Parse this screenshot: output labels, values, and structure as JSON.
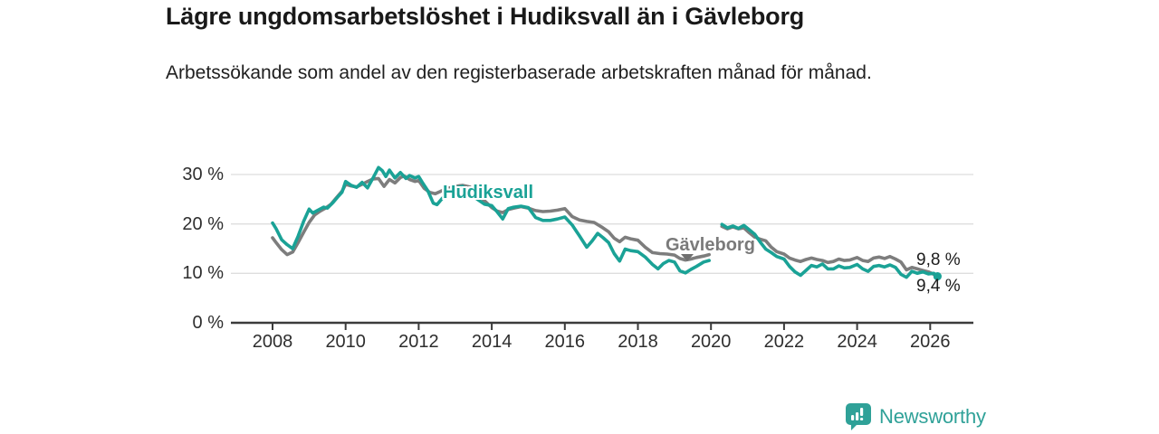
{
  "title": "Lägre ungdomsarbetslöshet i Hudiksvall än i Gävleborg",
  "subtitle": "Arbetssökande som andel av den registerbaserade arbetskraften månad för månad.",
  "colors": {
    "accent_teal": "#1aa296",
    "line_gray": "#7d7d7d",
    "gridline": "#dedede",
    "axis": "#3b3b3b",
    "text_dark": "#1c1c1c",
    "logo_teal": "#2fa198"
  },
  "chart": {
    "y_axis": {
      "ticks": [
        {
          "value": 30,
          "label": "30 %"
        },
        {
          "value": 20,
          "label": "20 %"
        },
        {
          "value": 10,
          "label": "10 %"
        },
        {
          "value": 0,
          "label": "0 %"
        }
      ]
    },
    "x_axis": {
      "ticks": [
        {
          "year": 2008,
          "label": "2008"
        },
        {
          "year": 2010,
          "label": "2010"
        },
        {
          "year": 2012,
          "label": "2012"
        },
        {
          "year": 2014,
          "label": "2014"
        },
        {
          "year": 2016,
          "label": "2016"
        },
        {
          "year": 2018,
          "label": "2018"
        },
        {
          "year": 2020,
          "label": "2020"
        },
        {
          "year": 2022,
          "label": "2022"
        },
        {
          "year": 2024,
          "label": "2024"
        },
        {
          "year": 2026,
          "label": "2026"
        }
      ]
    },
    "series_labels": {
      "hudiksvall": "Hudiksvall",
      "gavleborg": "Gävleborg"
    },
    "end_labels": {
      "gavleborg": "9,8 %",
      "hudiksvall": "9,4 %"
    }
  },
  "chart_data": {
    "type": "line",
    "title": "Lägre ungdomsarbetslöshet i Hudiksvall än i Gävleborg",
    "unit": "%",
    "x_range": [
      2007.6,
      2026.6
    ],
    "ylim": [
      0,
      33
    ],
    "grid": true,
    "legend_position": "inline-labels",
    "series": [
      {
        "name": "Gävleborg",
        "color": "#7d7d7d",
        "end_value": 9.8,
        "end_label": "9,8 %",
        "segments": [
          [
            [
              2008.0,
              17.2
            ],
            [
              2008.1,
              16.2
            ],
            [
              2008.25,
              14.8
            ],
            [
              2008.4,
              13.8
            ],
            [
              2008.55,
              14.3
            ],
            [
              2008.7,
              16.2
            ],
            [
              2008.85,
              18.3
            ],
            [
              2009.0,
              20.3
            ],
            [
              2009.15,
              21.8
            ],
            [
              2009.3,
              22.6
            ],
            [
              2009.45,
              23.2
            ],
            [
              2009.6,
              24.0
            ],
            [
              2009.75,
              25.3
            ],
            [
              2009.9,
              26.6
            ],
            [
              2010.0,
              28.0
            ],
            [
              2010.15,
              27.7
            ],
            [
              2010.3,
              27.5
            ],
            [
              2010.45,
              28.0
            ],
            [
              2010.6,
              28.6
            ],
            [
              2010.75,
              29.1
            ],
            [
              2010.9,
              29.2
            ],
            [
              2011.05,
              27.6
            ],
            [
              2011.2,
              29.0
            ],
            [
              2011.35,
              28.3
            ],
            [
              2011.5,
              29.4
            ],
            [
              2011.6,
              29.7
            ],
            [
              2011.75,
              29.0
            ],
            [
              2011.9,
              28.6
            ],
            [
              2012.0,
              28.8
            ],
            [
              2012.15,
              27.2
            ],
            [
              2012.3,
              26.4
            ],
            [
              2012.45,
              26.1
            ],
            [
              2012.6,
              26.6
            ],
            [
              2012.8,
              27.2
            ],
            [
              2013.0,
              27.6
            ],
            [
              2013.2,
              27.8
            ],
            [
              2013.4,
              27.5
            ],
            [
              2013.6,
              26.2
            ],
            [
              2013.8,
              24.7
            ],
            [
              2014.0,
              23.3
            ],
            [
              2014.15,
              22.6
            ],
            [
              2014.3,
              22.3
            ],
            [
              2014.45,
              22.9
            ],
            [
              2014.6,
              23.2
            ],
            [
              2014.8,
              23.5
            ],
            [
              2015.0,
              23.2
            ],
            [
              2015.2,
              22.7
            ],
            [
              2015.4,
              22.5
            ],
            [
              2015.6,
              22.6
            ],
            [
              2015.8,
              22.8
            ],
            [
              2016.0,
              23.1
            ],
            [
              2016.2,
              21.5
            ],
            [
              2016.4,
              20.8
            ],
            [
              2016.6,
              20.5
            ],
            [
              2016.8,
              20.3
            ],
            [
              2017.0,
              19.4
            ],
            [
              2017.2,
              18.4
            ],
            [
              2017.35,
              17.1
            ],
            [
              2017.5,
              16.4
            ],
            [
              2017.65,
              17.3
            ],
            [
              2017.8,
              17.0
            ],
            [
              2018.0,
              16.7
            ],
            [
              2018.2,
              15.3
            ],
            [
              2018.4,
              14.2
            ],
            [
              2018.6,
              14.0
            ],
            [
              2018.8,
              13.9
            ],
            [
              2019.0,
              13.7
            ],
            [
              2019.15,
              13.0
            ],
            [
              2019.3,
              12.7
            ],
            [
              2019.45,
              12.9
            ],
            [
              2019.6,
              13.2
            ],
            [
              2019.8,
              13.5
            ],
            [
              2019.95,
              13.8
            ]
          ],
          [
            [
              2020.3,
              19.5
            ],
            [
              2020.45,
              19.0
            ],
            [
              2020.6,
              19.4
            ],
            [
              2020.75,
              19.0
            ],
            [
              2020.9,
              19.2
            ],
            [
              2021.05,
              18.2
            ],
            [
              2021.2,
              17.3
            ],
            [
              2021.35,
              16.9
            ],
            [
              2021.5,
              16.6
            ],
            [
              2021.65,
              15.3
            ],
            [
              2021.8,
              14.4
            ],
            [
              2022.0,
              13.9
            ],
            [
              2022.15,
              13.1
            ],
            [
              2022.3,
              12.7
            ],
            [
              2022.45,
              12.4
            ],
            [
              2022.6,
              12.8
            ],
            [
              2022.75,
              13.1
            ],
            [
              2022.9,
              12.8
            ],
            [
              2023.05,
              12.6
            ],
            [
              2023.2,
              12.2
            ],
            [
              2023.35,
              12.4
            ],
            [
              2023.5,
              12.9
            ],
            [
              2023.65,
              12.6
            ],
            [
              2023.8,
              12.7
            ],
            [
              2024.0,
              13.2
            ],
            [
              2024.15,
              12.6
            ],
            [
              2024.3,
              12.4
            ],
            [
              2024.45,
              13.1
            ],
            [
              2024.6,
              13.3
            ],
            [
              2024.75,
              13.0
            ],
            [
              2024.9,
              13.4
            ],
            [
              2025.05,
              12.9
            ],
            [
              2025.2,
              12.3
            ],
            [
              2025.35,
              10.7
            ],
            [
              2025.5,
              11.2
            ],
            [
              2025.65,
              10.9
            ],
            [
              2025.8,
              10.6
            ],
            [
              2025.95,
              10.3
            ],
            [
              2026.1,
              9.8
            ]
          ]
        ]
      },
      {
        "name": "Hudiksvall",
        "color": "#1aa296",
        "end_value": 9.4,
        "end_label": "9,4 %",
        "segments": [
          [
            [
              2008.0,
              20.2
            ],
            [
              2008.1,
              19.0
            ],
            [
              2008.25,
              16.8
            ],
            [
              2008.4,
              15.8
            ],
            [
              2008.55,
              15.0
            ],
            [
              2008.7,
              17.5
            ],
            [
              2008.85,
              20.5
            ],
            [
              2009.0,
              23.0
            ],
            [
              2009.1,
              22.2
            ],
            [
              2009.25,
              22.8
            ],
            [
              2009.4,
              23.4
            ],
            [
              2009.5,
              23.2
            ],
            [
              2009.65,
              24.3
            ],
            [
              2009.8,
              25.6
            ],
            [
              2009.9,
              26.4
            ],
            [
              2010.0,
              28.6
            ],
            [
              2010.15,
              27.8
            ],
            [
              2010.3,
              27.4
            ],
            [
              2010.45,
              28.4
            ],
            [
              2010.6,
              27.3
            ],
            [
              2010.75,
              29.3
            ],
            [
              2010.9,
              31.4
            ],
            [
              2011.0,
              30.8
            ],
            [
              2011.1,
              29.6
            ],
            [
              2011.2,
              30.9
            ],
            [
              2011.35,
              29.3
            ],
            [
              2011.5,
              30.4
            ],
            [
              2011.65,
              29.2
            ],
            [
              2011.75,
              29.8
            ],
            [
              2011.9,
              29.3
            ],
            [
              2012.0,
              29.6
            ],
            [
              2012.1,
              28.4
            ],
            [
              2012.25,
              26.7
            ],
            [
              2012.4,
              24.2
            ],
            [
              2012.5,
              23.9
            ],
            [
              2012.65,
              25.2
            ],
            [
              2012.8,
              26.4
            ],
            [
              2013.0,
              27.3
            ],
            [
              2013.2,
              27.6
            ],
            [
              2013.4,
              26.3
            ],
            [
              2013.6,
              25.0
            ],
            [
              2013.8,
              24.0
            ],
            [
              2014.0,
              23.7
            ],
            [
              2014.15,
              22.4
            ],
            [
              2014.3,
              21.0
            ],
            [
              2014.45,
              23.1
            ],
            [
              2014.6,
              23.4
            ],
            [
              2014.8,
              23.6
            ],
            [
              2015.0,
              23.3
            ],
            [
              2015.2,
              21.3
            ],
            [
              2015.4,
              20.7
            ],
            [
              2015.6,
              20.7
            ],
            [
              2015.8,
              21.0
            ],
            [
              2016.0,
              21.4
            ],
            [
              2016.2,
              19.8
            ],
            [
              2016.4,
              17.6
            ],
            [
              2016.6,
              15.3
            ],
            [
              2016.75,
              16.6
            ],
            [
              2016.9,
              18.1
            ],
            [
              2017.05,
              17.2
            ],
            [
              2017.2,
              16.2
            ],
            [
              2017.35,
              14.0
            ],
            [
              2017.5,
              12.5
            ],
            [
              2017.65,
              14.9
            ],
            [
              2017.8,
              14.6
            ],
            [
              2018.0,
              14.4
            ],
            [
              2018.2,
              13.3
            ],
            [
              2018.4,
              11.8
            ],
            [
              2018.55,
              10.9
            ],
            [
              2018.7,
              12.0
            ],
            [
              2018.85,
              12.6
            ],
            [
              2019.0,
              12.3
            ],
            [
              2019.15,
              10.5
            ],
            [
              2019.3,
              10.1
            ],
            [
              2019.45,
              10.8
            ],
            [
              2019.6,
              11.4
            ],
            [
              2019.8,
              12.3
            ],
            [
              2019.95,
              12.6
            ]
          ],
          [
            [
              2020.3,
              19.9
            ],
            [
              2020.45,
              19.2
            ],
            [
              2020.6,
              19.6
            ],
            [
              2020.75,
              19.1
            ],
            [
              2020.9,
              19.7
            ],
            [
              2021.05,
              18.8
            ],
            [
              2021.2,
              17.9
            ],
            [
              2021.35,
              16.3
            ],
            [
              2021.5,
              14.9
            ],
            [
              2021.65,
              14.2
            ],
            [
              2021.8,
              13.4
            ],
            [
              2022.0,
              12.9
            ],
            [
              2022.15,
              11.4
            ],
            [
              2022.3,
              10.3
            ],
            [
              2022.45,
              9.6
            ],
            [
              2022.6,
              10.6
            ],
            [
              2022.75,
              11.6
            ],
            [
              2022.9,
              11.3
            ],
            [
              2023.05,
              11.9
            ],
            [
              2023.2,
              10.9
            ],
            [
              2023.35,
              10.9
            ],
            [
              2023.5,
              11.5
            ],
            [
              2023.65,
              11.1
            ],
            [
              2023.8,
              11.2
            ],
            [
              2024.0,
              11.8
            ],
            [
              2024.15,
              10.9
            ],
            [
              2024.3,
              10.4
            ],
            [
              2024.45,
              11.4
            ],
            [
              2024.6,
              11.6
            ],
            [
              2024.75,
              11.3
            ],
            [
              2024.9,
              11.7
            ],
            [
              2025.05,
              11.2
            ],
            [
              2025.2,
              9.8
            ],
            [
              2025.35,
              9.2
            ],
            [
              2025.5,
              10.4
            ],
            [
              2025.65,
              10.0
            ],
            [
              2025.8,
              10.3
            ],
            [
              2025.95,
              9.9
            ],
            [
              2026.1,
              10.0
            ],
            [
              2026.2,
              9.4
            ]
          ]
        ]
      }
    ]
  },
  "branding": {
    "logo_text": "Newsworthy"
  }
}
